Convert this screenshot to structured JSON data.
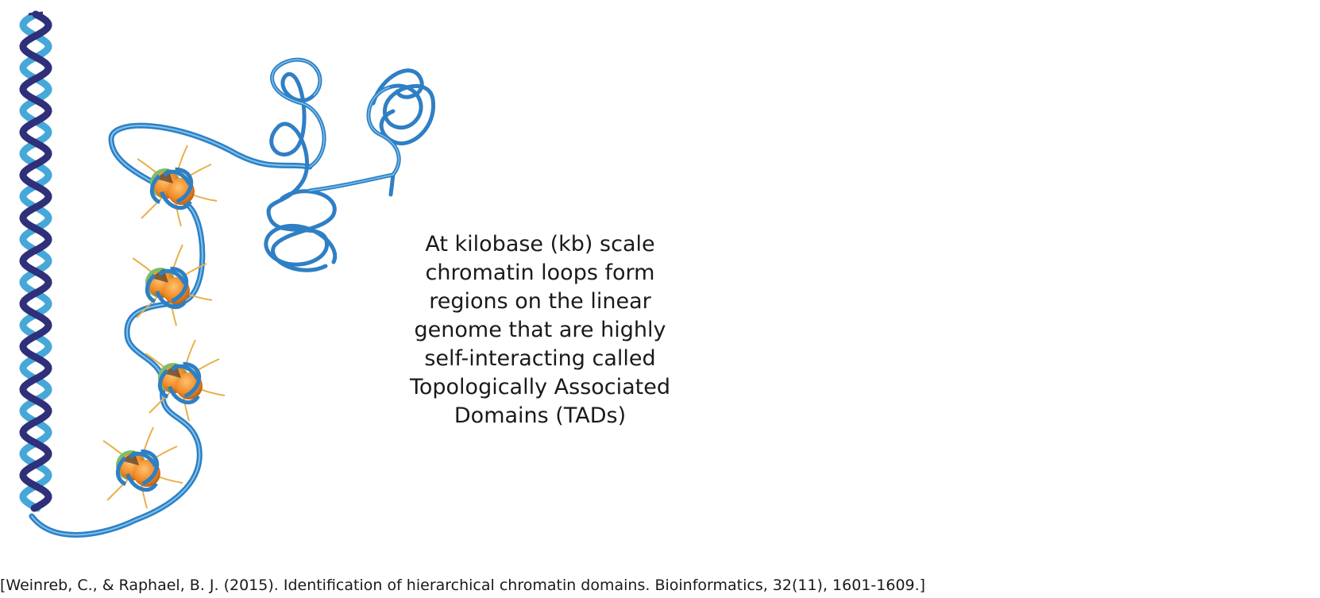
{
  "caption": "At kilobase (kb) scale chromatin loops form regions on the linear genome that are highly self-interacting called Topologically Associated Domains (TADs)",
  "citation": "[Weinreb, C., & Raphael, B. J. (2015). Identification of hierarchical chromatin domains. Bioinformatics, 32(11), 1601-1609.]",
  "colors": {
    "helix_dark": "#2f2f7a",
    "helix_light": "#46a8d8",
    "fiber": "#2f7fc4",
    "fiber_highlight": "#7cc4ee",
    "histone_orange": "#f08a24",
    "histone_green": "#7bbf6a",
    "histone_dark": "#4a3a2a",
    "tail": "#e8b04a"
  },
  "icons": [
    "dna-double-helix-icon",
    "nucleosome-icon",
    "chromatin-fiber-icon",
    "tad-loop-icon"
  ]
}
